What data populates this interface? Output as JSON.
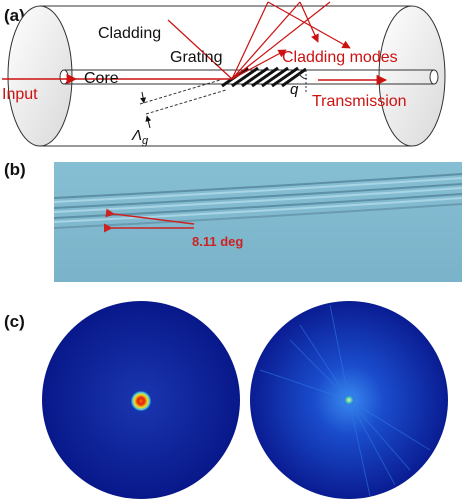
{
  "panels": {
    "a": {
      "letter": "(a)",
      "labels": {
        "cladding": "Cladding",
        "grating": "Grating",
        "core": "Core",
        "input": "Input",
        "cladding_modes": "Cladding modes",
        "transmission": "Transmission",
        "q": "q",
        "lambda_g": "Λ",
        "lambda_g_sub": "g"
      },
      "colors": {
        "arrow": "#cc1111",
        "text": "#111111"
      }
    },
    "b": {
      "letter": "(b)",
      "angle_label": "8.11 deg",
      "colors": {
        "background": "#7fb9cf",
        "annotation": "#cc2222"
      }
    },
    "c": {
      "letter": "(c)",
      "colors": {
        "field": "#0a1f8f",
        "hotspot": "#e03a10"
      }
    }
  }
}
